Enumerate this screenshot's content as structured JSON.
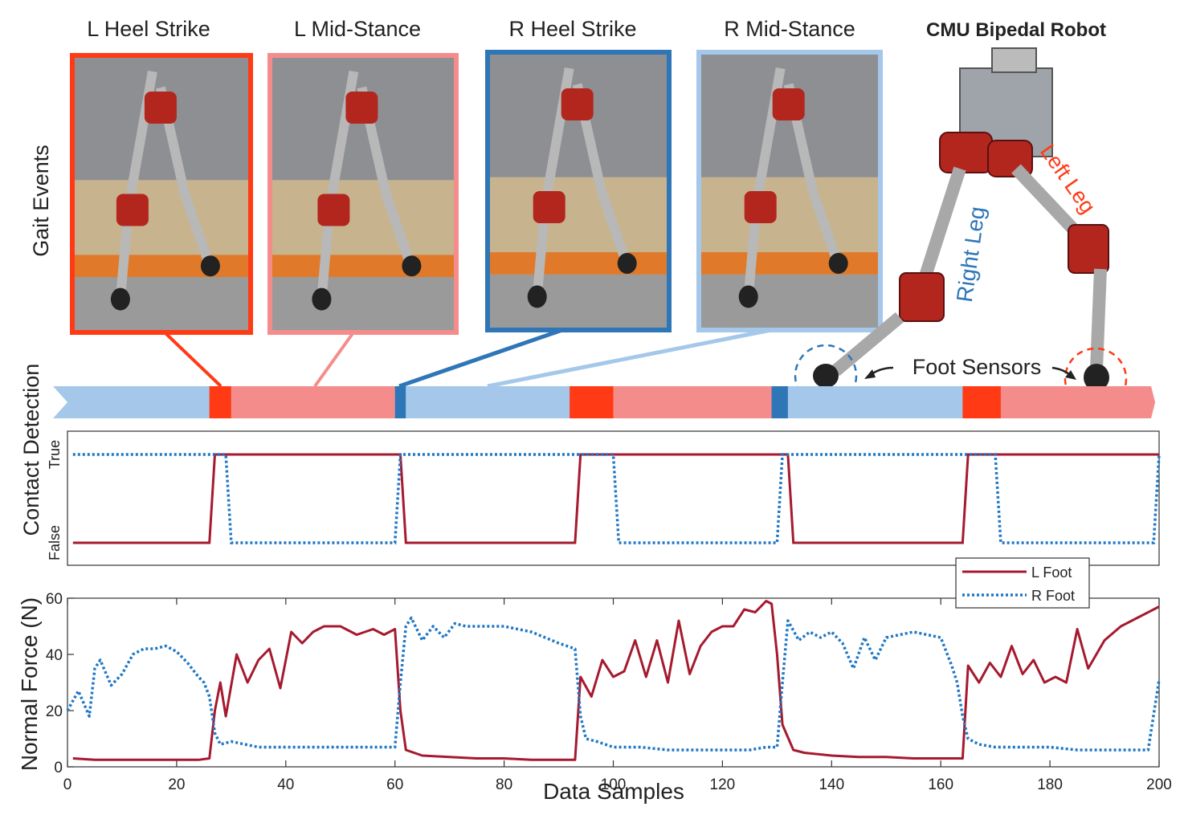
{
  "panels": [
    {
      "label": "L Heel Strike",
      "color": "#ff3a14"
    },
    {
      "label": "L Mid-Stance",
      "color": "#f58c8c"
    },
    {
      "label": "R Heel Strike",
      "color": "#2f76b7"
    },
    {
      "label": "R Mid-Stance",
      "color": "#a5c8ea"
    }
  ],
  "robot": {
    "title": "CMU Bipedal Robot",
    "right_leg_label": "Right Leg",
    "left_leg_label": "Left Leg",
    "foot_sensors_label": "Foot Sensors"
  },
  "row_labels": {
    "gait_events": "Gait Events",
    "contact_detection": "Contact Detection"
  },
  "colors": {
    "l_heel_strike": "#ff3a14",
    "l_mid_stance": "#f58c8c",
    "r_heel_strike": "#2f76b7",
    "r_mid_stance": "#a5c8ea",
    "l_foot_line": "#a6192e",
    "r_foot_line": "#1f77c4"
  },
  "contact_bar": {
    "segments": [
      {
        "phase": "r_mid_stance",
        "from": 0,
        "to": 26
      },
      {
        "phase": "l_heel_strike",
        "from": 26,
        "to": 30
      },
      {
        "phase": "l_mid_stance",
        "from": 30,
        "to": 60
      },
      {
        "phase": "r_heel_strike",
        "from": 60,
        "to": 62
      },
      {
        "phase": "r_mid_stance",
        "from": 62,
        "to": 92
      },
      {
        "phase": "l_heel_strike",
        "from": 92,
        "to": 100
      },
      {
        "phase": "l_mid_stance",
        "from": 100,
        "to": 129
      },
      {
        "phase": "r_heel_strike",
        "from": 129,
        "to": 132
      },
      {
        "phase": "r_mid_stance",
        "from": 132,
        "to": 164
      },
      {
        "phase": "l_heel_strike",
        "from": 164,
        "to": 171
      },
      {
        "phase": "l_mid_stance",
        "from": 171,
        "to": 200
      }
    ]
  },
  "chart_data": [
    {
      "type": "line",
      "ylabel": "Contact Detection",
      "xlim": [
        0,
        200
      ],
      "yticks": [
        "False",
        "True"
      ],
      "series": [
        {
          "name": "L Foot",
          "style": "solid",
          "x": [
            1,
            26,
            27,
            61,
            62,
            93,
            94,
            132,
            133,
            164,
            165,
            200
          ],
          "values": [
            0,
            0,
            1,
            1,
            0,
            0,
            1,
            1,
            0,
            0,
            1,
            1
          ]
        },
        {
          "name": "R Foot",
          "style": "dotted",
          "x": [
            1,
            29,
            30,
            60,
            61,
            100,
            101,
            130,
            131,
            170,
            171,
            199,
            200
          ],
          "values": [
            1,
            1,
            0,
            0,
            1,
            1,
            0,
            0,
            1,
            1,
            0,
            0,
            1
          ]
        }
      ]
    },
    {
      "type": "line",
      "xlabel": "Data Samples",
      "ylabel": "Normal Force (N)",
      "xlim": [
        0,
        200
      ],
      "ylim": [
        0,
        60
      ],
      "xticks": [
        0,
        20,
        40,
        60,
        80,
        100,
        120,
        140,
        160,
        180,
        200
      ],
      "yticks": [
        0,
        20,
        40,
        60
      ],
      "legend": "top-right",
      "series": [
        {
          "name": "L Foot",
          "style": "solid",
          "x": [
            1,
            5,
            10,
            15,
            20,
            24,
            26,
            27,
            28,
            29,
            31,
            33,
            35,
            37,
            39,
            41,
            43,
            45,
            47,
            50,
            53,
            56,
            58,
            60,
            61,
            62,
            65,
            70,
            75,
            80,
            85,
            90,
            93,
            94,
            96,
            98,
            100,
            102,
            104,
            106,
            108,
            110,
            112,
            114,
            116,
            118,
            120,
            122,
            124,
            126,
            128,
            129,
            130,
            131,
            133,
            135,
            140,
            145,
            150,
            155,
            160,
            163,
            164,
            165,
            167,
            169,
            171,
            173,
            175,
            177,
            179,
            181,
            183,
            185,
            187,
            190,
            193,
            196,
            200
          ],
          "values": [
            3,
            2.5,
            2.5,
            2.5,
            2.5,
            2.5,
            3,
            20,
            30,
            18,
            40,
            30,
            38,
            42,
            28,
            48,
            44,
            48,
            50,
            50,
            47,
            49,
            47,
            49,
            20,
            6,
            4,
            3.5,
            3,
            3,
            2.5,
            2.5,
            2.5,
            32,
            25,
            38,
            32,
            34,
            45,
            32,
            45,
            30,
            52,
            33,
            43,
            48,
            50,
            50,
            56,
            55,
            59,
            58,
            40,
            15,
            6,
            5,
            4,
            3.5,
            3.5,
            3,
            3,
            3,
            3,
            36,
            30,
            37,
            32,
            43,
            33,
            38,
            30,
            32,
            30,
            49,
            35,
            45,
            50,
            53,
            57
          ]
        },
        {
          "name": "R Foot",
          "style": "dotted",
          "x": [
            0,
            2,
            4,
            5,
            6,
            8,
            10,
            12,
            14,
            16,
            18,
            20,
            22,
            24,
            25,
            26,
            27,
            28,
            30,
            35,
            40,
            45,
            50,
            55,
            60,
            61,
            62,
            63,
            65,
            67,
            69,
            71,
            73,
            75,
            80,
            85,
            90,
            93,
            94,
            95,
            97,
            100,
            105,
            110,
            115,
            120,
            125,
            128,
            130,
            131,
            132,
            134,
            136,
            138,
            140,
            142,
            144,
            146,
            148,
            150,
            155,
            160,
            162,
            163,
            164,
            165,
            167,
            170,
            175,
            180,
            185,
            190,
            195,
            198,
            200
          ],
          "values": [
            20,
            27,
            18,
            35,
            38,
            29,
            33,
            40,
            42,
            42,
            43,
            41,
            37,
            32,
            30,
            25,
            12,
            8,
            9,
            7,
            7,
            7,
            7,
            7,
            7,
            30,
            50,
            53,
            45,
            50,
            46,
            51,
            50,
            50,
            50,
            48,
            44,
            42,
            18,
            10,
            9,
            7,
            7,
            6,
            6,
            6,
            6,
            7,
            7,
            30,
            52,
            45,
            48,
            46,
            48,
            44,
            35,
            46,
            38,
            46,
            48,
            46,
            36,
            30,
            18,
            10,
            8,
            7,
            7,
            7,
            6,
            6,
            6,
            6,
            31
          ]
        }
      ]
    }
  ]
}
